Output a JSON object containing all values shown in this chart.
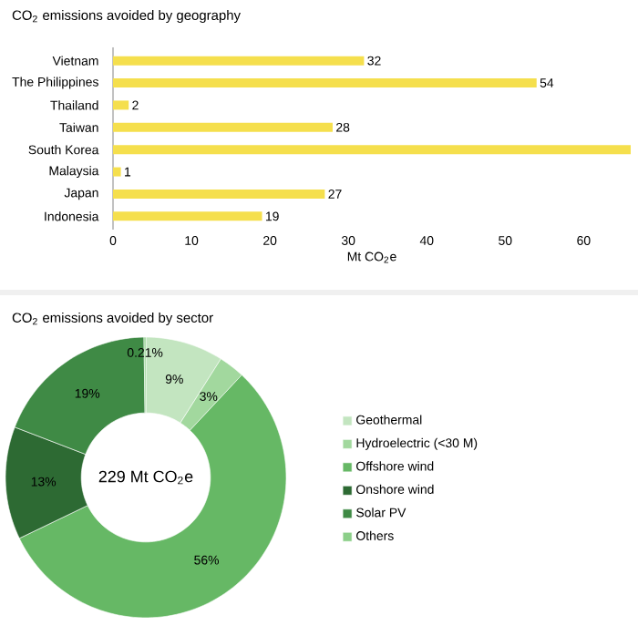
{
  "chart_data": [
    {
      "type": "bar",
      "orientation": "horizontal",
      "title": "CO$_{2}$ emissions avoided by geography",
      "xlabel": "Mt CO$_{2}$e",
      "categories": [
        "Vietnam",
        "The Philippines",
        "Thailand",
        "Taiwan",
        "South Korea",
        "Malaysia",
        "Japan",
        "Indonesia"
      ],
      "values": [
        32,
        54,
        2,
        28,
        66,
        1,
        27,
        19
      ],
      "value_labels": [
        "32",
        "54",
        "2",
        "28",
        null,
        "1",
        "27",
        "19"
      ],
      "color": "#f5df4d",
      "xlim": [
        0,
        66
      ],
      "xticks": [
        0,
        10,
        20,
        30,
        40,
        50,
        60
      ]
    },
    {
      "type": "donut",
      "title": "CO$_{2}$ emissions avoided by sector",
      "categories": [
        "Geothermal",
        "Hydroelectric (<30 M)",
        "Offshore wind",
        "Onshore wind",
        "Solar PV",
        "Others"
      ],
      "values": [
        9,
        3,
        56,
        13,
        19,
        0.21
      ],
      "value_labels": [
        "9%",
        "3%",
        "56%",
        "13%",
        "19%",
        "0.21%"
      ],
      "colors": [
        "#c3e5c0",
        "#a2d89e",
        "#66b865",
        "#2d6a33",
        "#3f8a45",
        "#8ccf89"
      ],
      "legend": "right",
      "annotations": [
        "229 Mt CO$_{2}$e"
      ]
    }
  ]
}
